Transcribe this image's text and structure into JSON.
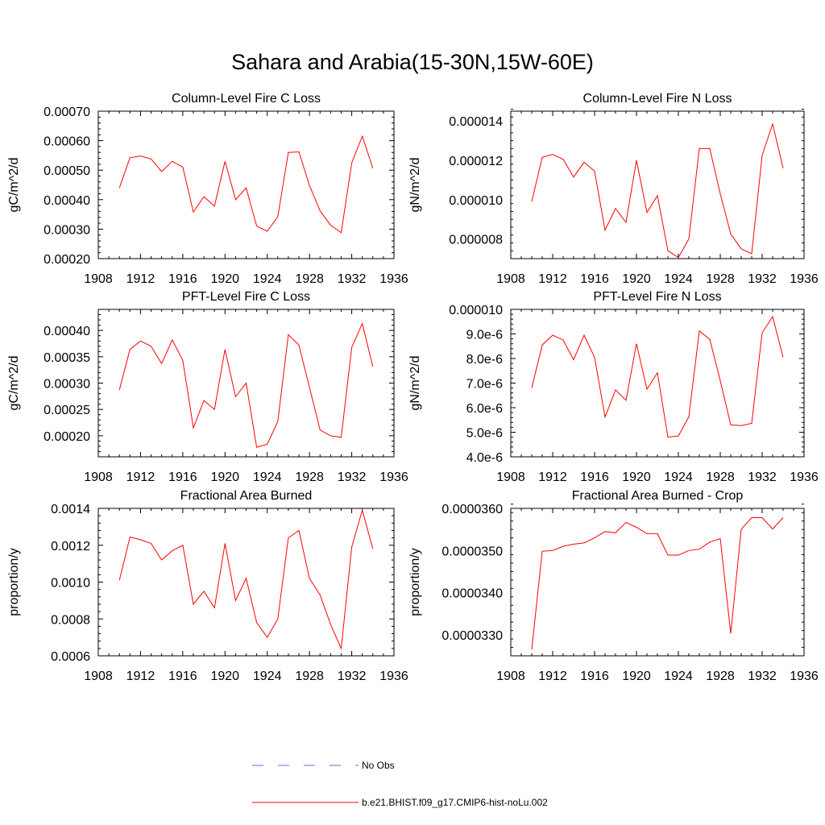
{
  "figure": {
    "title": "Sahara and Arabia(15-30N,15W-60E)",
    "line_color": "#ff0000",
    "obs_color": "#6a6ad8"
  },
  "legend": {
    "entries": [
      {
        "label": "No Obs",
        "style": "dashed",
        "color": "#6a6ad8"
      },
      {
        "label": "b.e21.BHIST.f09_g17.CMIP6-hist-noLu.002",
        "style": "solid",
        "color": "#ff0000"
      }
    ]
  },
  "chart_data": [
    {
      "type": "line",
      "title": "Column-Level Fire C Loss",
      "xlabel": "",
      "ylabel": "gC/m^2/d",
      "xlim": [
        1908,
        1936
      ],
      "ylim": [
        0.0002,
        0.0007
      ],
      "xticks": [
        1908,
        1912,
        1916,
        1920,
        1924,
        1928,
        1932,
        1936
      ],
      "xticklabels": [
        "1908",
        "1912",
        "1916",
        "1920",
        "1924",
        "1928",
        "1932",
        "1936"
      ],
      "yticks": [
        0.0002,
        0.0003,
        0.0004,
        0.0005,
        0.0006,
        0.0007
      ],
      "yticklabels": [
        "0.00020",
        "0.00030",
        "0.00040",
        "0.00050",
        "0.00060",
        "0.00070"
      ],
      "x": [
        1910,
        1911,
        1912,
        1913,
        1914,
        1915,
        1916,
        1917,
        1918,
        1919,
        1920,
        1921,
        1922,
        1923,
        1924,
        1925,
        1926,
        1927,
        1928,
        1929,
        1930,
        1931,
        1932,
        1933,
        1934
      ],
      "values": [
        0.00044,
        0.000542,
        0.000548,
        0.000538,
        0.000495,
        0.00053,
        0.00051,
        0.000358,
        0.00041,
        0.000378,
        0.00053,
        0.0004,
        0.00044,
        0.00031,
        0.000293,
        0.000342,
        0.00056,
        0.000562,
        0.000448,
        0.000362,
        0.000313,
        0.000288,
        0.000525,
        0.000615,
        0.000506
      ]
    },
    {
      "type": "line",
      "title": "Column-Level Fire N Loss",
      "xlabel": "",
      "ylabel": "gN/m^2/d",
      "xlim": [
        1908,
        1936
      ],
      "ylim": [
        7e-06,
        1.45e-05
      ],
      "xticks": [
        1908,
        1912,
        1916,
        1920,
        1924,
        1928,
        1932,
        1936
      ],
      "xticklabels": [
        "1908",
        "1912",
        "1916",
        "1920",
        "1924",
        "1928",
        "1932",
        "1936"
      ],
      "yticks": [
        8e-06,
        1e-05,
        1.2e-05,
        1.4e-05
      ],
      "yticklabels": [
        "0.000008",
        "0.000010",
        "0.000012",
        "0.000014"
      ],
      "x": [
        1910,
        1911,
        1912,
        1913,
        1914,
        1915,
        1916,
        1917,
        1918,
        1919,
        1920,
        1921,
        1922,
        1923,
        1924,
        1925,
        1926,
        1927,
        1928,
        1929,
        1930,
        1931,
        1932,
        1933,
        1934
      ],
      "values": [
        9.9e-06,
        1.215e-05,
        1.23e-05,
        1.205e-05,
        1.115e-05,
        1.19e-05,
        1.145e-05,
        8.45e-06,
        9.55e-06,
        8.85e-06,
        1.2e-05,
        9.35e-06,
        1.02e-05,
        7.4e-06,
        7.05e-06,
        8e-06,
        1.26e-05,
        1.26e-05,
        1.03e-05,
        8.25e-06,
        7.5e-06,
        7.25e-06,
        1.225e-05,
        1.385e-05,
        1.16e-05
      ]
    },
    {
      "type": "line",
      "title": "PFT-Level Fire C Loss",
      "xlabel": "",
      "ylabel": "gC/m^2/d",
      "xlim": [
        1908,
        1936
      ],
      "ylim": [
        0.00016,
        0.00044
      ],
      "xticks": [
        1908,
        1912,
        1916,
        1920,
        1924,
        1928,
        1932,
        1936
      ],
      "xticklabels": [
        "1908",
        "1912",
        "1916",
        "1920",
        "1924",
        "1928",
        "1932",
        "1936"
      ],
      "yticks": [
        0.0002,
        0.00025,
        0.0003,
        0.00035,
        0.0004
      ],
      "yticklabels": [
        "0.00020",
        "0.00025",
        "0.00030",
        "0.00035",
        "0.00040"
      ],
      "x": [
        1910,
        1911,
        1912,
        1913,
        1914,
        1915,
        1916,
        1917,
        1918,
        1919,
        1920,
        1921,
        1922,
        1923,
        1924,
        1925,
        1926,
        1927,
        1928,
        1929,
        1930,
        1931,
        1932,
        1933,
        1934
      ],
      "values": [
        0.000287,
        0.000364,
        0.00038,
        0.00037,
        0.000337,
        0.000382,
        0.000343,
        0.000215,
        0.000267,
        0.00025,
        0.000364,
        0.000274,
        0.0003,
        0.000178,
        0.000184,
        0.000227,
        0.000392,
        0.000372,
        0.000292,
        0.000211,
        0.0002,
        0.000197,
        0.000368,
        0.000413,
        0.000331
      ]
    },
    {
      "type": "line",
      "title": "PFT-Level Fire N Loss",
      "xlabel": "",
      "ylabel": "gN/m^2/d",
      "xlim": [
        1908,
        1936
      ],
      "ylim": [
        4e-06,
        1e-05
      ],
      "xticks": [
        1908,
        1912,
        1916,
        1920,
        1924,
        1928,
        1932,
        1936
      ],
      "xticklabels": [
        "1908",
        "1912",
        "1916",
        "1920",
        "1924",
        "1928",
        "1932",
        "1936"
      ],
      "yticks": [
        4e-06,
        5e-06,
        6e-06,
        7e-06,
        8e-06,
        9e-06,
        1e-05
      ],
      "yticklabels": [
        "4.0e-6",
        "5.0e-6",
        "6.0e-6",
        "7.0e-6",
        "8.0e-6",
        "9.0e-6",
        "0.000010"
      ],
      "x": [
        1910,
        1911,
        1912,
        1913,
        1914,
        1915,
        1916,
        1917,
        1918,
        1919,
        1920,
        1921,
        1922,
        1923,
        1924,
        1925,
        1926,
        1927,
        1928,
        1929,
        1930,
        1931,
        1932,
        1933,
        1934
      ],
      "values": [
        6.8e-06,
        8.55e-06,
        8.95e-06,
        8.75e-06,
        7.95e-06,
        8.95e-06,
        8.05e-06,
        5.62e-06,
        6.72e-06,
        6.3e-06,
        8.6e-06,
        6.75e-06,
        7.42e-06,
        4.8e-06,
        4.85e-06,
        5.63e-06,
        9.12e-06,
        8.78e-06,
        7.1e-06,
        5.3e-06,
        5.27e-06,
        5.36e-06,
        9.05e-06,
        9.7e-06,
        8.05e-06
      ]
    },
    {
      "type": "line",
      "title": "Fractional Area Burned",
      "xlabel": "",
      "ylabel": "proportion/y",
      "xlim": [
        1908,
        1936
      ],
      "ylim": [
        0.0006,
        0.0014
      ],
      "xticks": [
        1908,
        1912,
        1916,
        1920,
        1924,
        1928,
        1932,
        1936
      ],
      "xticklabels": [
        "1908",
        "1912",
        "1916",
        "1920",
        "1924",
        "1928",
        "1932",
        "1936"
      ],
      "yticks": [
        0.0006,
        0.0008,
        0.001,
        0.0012,
        0.0014
      ],
      "yticklabels": [
        "0.0006",
        "0.0008",
        "0.0010",
        "0.0012",
        "0.0014"
      ],
      "x": [
        1910,
        1911,
        1912,
        1913,
        1914,
        1915,
        1916,
        1917,
        1918,
        1919,
        1920,
        1921,
        1922,
        1923,
        1924,
        1925,
        1926,
        1927,
        1928,
        1929,
        1930,
        1931,
        1932,
        1933,
        1934
      ],
      "values": [
        0.00101,
        0.001245,
        0.00123,
        0.00121,
        0.00112,
        0.00117,
        0.0012,
        0.00088,
        0.00095,
        0.00086,
        0.00121,
        0.0009,
        0.00102,
        0.00078,
        0.0007,
        0.0008,
        0.00124,
        0.00128,
        0.00102,
        0.00093,
        0.00077,
        0.00064,
        0.00119,
        0.00139,
        0.00118
      ]
    },
    {
      "type": "line",
      "title": "Fractional Area Burned - Crop",
      "xlabel": "",
      "ylabel": "proportion/y",
      "xlim": [
        1908,
        1936
      ],
      "ylim": [
        3.25e-05,
        3.6e-05
      ],
      "xticks": [
        1908,
        1912,
        1916,
        1920,
        1924,
        1928,
        1932,
        1936
      ],
      "xticklabels": [
        "1908",
        "1912",
        "1916",
        "1920",
        "1924",
        "1928",
        "1932",
        "1936"
      ],
      "yticks": [
        3.3e-05,
        3.4e-05,
        3.5e-05,
        3.6e-05
      ],
      "yticklabels": [
        "0.0000330",
        "0.0000340",
        "0.0000350",
        "0.0000360"
      ],
      "x": [
        1910,
        1911,
        1912,
        1913,
        1914,
        1915,
        1916,
        1917,
        1918,
        1919,
        1920,
        1921,
        1922,
        1923,
        1924,
        1925,
        1926,
        1927,
        1928,
        1929,
        1930,
        1931,
        1932,
        1933,
        1934
      ],
      "values": [
        3.265e-05,
        3.498e-05,
        3.5e-05,
        3.51e-05,
        3.515e-05,
        3.518e-05,
        3.53e-05,
        3.545e-05,
        3.542e-05,
        3.567e-05,
        3.555e-05,
        3.54e-05,
        3.54e-05,
        3.489e-05,
        3.489e-05,
        3.5e-05,
        3.503e-05,
        3.52e-05,
        3.528e-05,
        3.303e-05,
        3.55e-05,
        3.578e-05,
        3.578e-05,
        3.551e-05,
        3.578e-05
      ]
    }
  ]
}
